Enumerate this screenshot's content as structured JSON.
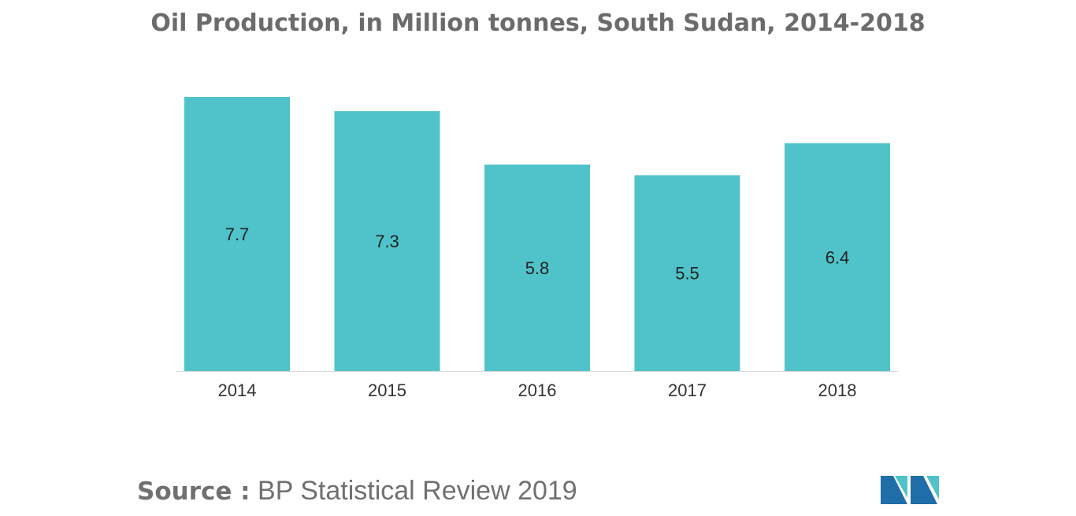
{
  "chart_data": {
    "type": "bar",
    "title": "Oil Production, in Million tonnes, South Sudan, 2014-2018",
    "categories": [
      "2014",
      "2015",
      "2016",
      "2017",
      "2018"
    ],
    "values": [
      7.7,
      7.3,
      5.8,
      5.5,
      6.4
    ],
    "value_labels": [
      "7.7",
      "7.3",
      "5.8",
      "5.5",
      "6.4"
    ],
    "xlabel": "",
    "ylabel": "",
    "ylim": [
      0,
      7.7
    ],
    "grid": false,
    "legend": "none",
    "bar_color": "#4fc3c9",
    "axis_color": "#d9d9d9"
  },
  "source": {
    "prefix": "Source :",
    "text": " BP Statistical Review 2019"
  },
  "logo": {
    "icon": "mordor-intelligence-logo-icon",
    "colors": [
      "#1f6ea8",
      "#4fc3c9"
    ]
  }
}
